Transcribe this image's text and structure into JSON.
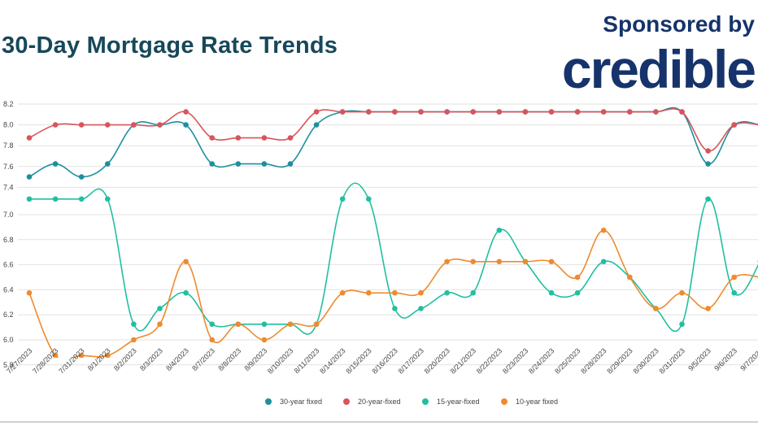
{
  "header": {
    "title": "30-Day Mortgage Rate Trends",
    "sponsor_text": "Sponsored by",
    "brand": "credible"
  },
  "chart_data": {
    "type": "line",
    "title": "30-Day Mortgage Rate Trends",
    "xlabel": "",
    "ylabel": "",
    "grid": true,
    "legend_position": "bottom",
    "categories": [
      "7/27/2023",
      "7/28/2023",
      "7/31/2023",
      "8/1/2023",
      "8/2/2023",
      "8/3/2023",
      "8/4/2023",
      "8/7/2023",
      "8/8/2023",
      "8/9/2023",
      "8/10/2023",
      "8/11/2023",
      "8/14/2023",
      "8/15/2023",
      "8/16/2023",
      "8/17/2023",
      "8/20/2023",
      "8/21/2023",
      "8/22/2023",
      "8/23/2023",
      "8/24/2023",
      "8/25/2023",
      "8/28/2023",
      "8/29/2023",
      "8/30/2023",
      "8/31/2023",
      "9/5/2023",
      "9/6/2023",
      "9/7/2023"
    ],
    "y_ticks_upper": [
      "8.2",
      "8.0",
      "7.8",
      "7.6",
      "7.4"
    ],
    "y_ticks_lower": [
      "7.0",
      "6.8",
      "6.6",
      "6.4",
      "6.2",
      "6.0",
      "5.8"
    ],
    "series": [
      {
        "name": "30-year fixed",
        "color": "#1e8f9e",
        "panel": "upper",
        "values": [
          7.5,
          7.625,
          7.5,
          7.625,
          8.0,
          8.0,
          8.0,
          7.625,
          7.625,
          7.625,
          7.625,
          8.0,
          8.125,
          8.125,
          8.125,
          8.125,
          8.125,
          8.125,
          8.125,
          8.125,
          8.125,
          8.125,
          8.125,
          8.125,
          8.125,
          8.125,
          7.625,
          8.0,
          8.0
        ]
      },
      {
        "name": "20-year-fixed",
        "color": "#d9545c",
        "panel": "upper",
        "values": [
          7.875,
          8.0,
          8.0,
          8.0,
          8.0,
          8.0,
          8.125,
          7.875,
          7.875,
          7.875,
          7.875,
          8.125,
          8.125,
          8.125,
          8.125,
          8.125,
          8.125,
          8.125,
          8.125,
          8.125,
          8.125,
          8.125,
          8.125,
          8.125,
          8.125,
          8.125,
          7.75,
          8.0,
          8.0
        ]
      },
      {
        "name": "15-year-fixed",
        "color": "#22bfa0",
        "panel": "lower",
        "values": [
          7.125,
          7.125,
          7.125,
          7.125,
          6.125,
          6.25,
          6.375,
          6.125,
          6.125,
          6.125,
          6.125,
          6.125,
          7.125,
          7.125,
          6.25,
          6.25,
          6.375,
          6.375,
          6.875,
          6.625,
          6.375,
          6.375,
          6.625,
          6.5,
          6.25,
          6.125,
          7.125,
          6.375,
          6.625
        ]
      },
      {
        "name": "10-year fixed",
        "color": "#ef8a2e",
        "panel": "lower",
        "values": [
          6.375,
          5.875,
          5.875,
          5.875,
          6.0,
          6.125,
          6.625,
          6.0,
          6.125,
          6.0,
          6.125,
          6.125,
          6.375,
          6.375,
          6.375,
          6.375,
          6.625,
          6.625,
          6.625,
          6.625,
          6.625,
          6.5,
          6.875,
          6.5,
          6.25,
          6.375,
          6.25,
          6.5,
          6.5
        ]
      }
    ]
  }
}
